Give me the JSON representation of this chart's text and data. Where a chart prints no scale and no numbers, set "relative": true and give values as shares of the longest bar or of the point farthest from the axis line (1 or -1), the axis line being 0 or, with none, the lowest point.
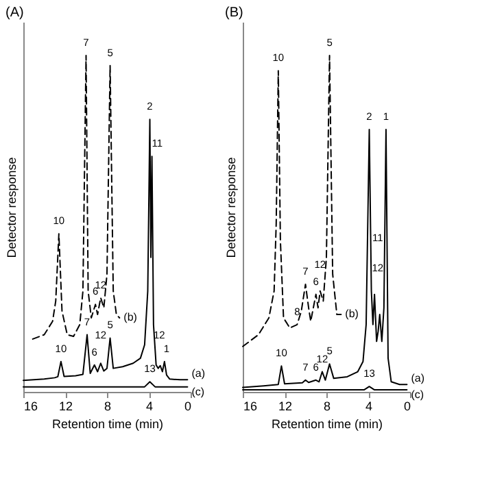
{
  "chart_data": [
    {
      "type": "line",
      "title": "(A)",
      "xlabel": "Retention time (min)",
      "ylabel": "Detector response",
      "xlim": [
        16,
        0
      ],
      "xticks": [
        16,
        12,
        8,
        4,
        0
      ],
      "relative": true,
      "tick_labels": "x",
      "grid": false,
      "marker": "none",
      "series": [
        {
          "name": "(a)",
          "color": "#000000",
          "line_style": "solid",
          "x": [
            16,
            14,
            13,
            12.7,
            12.4,
            12.1,
            11,
            10.3,
            9.9,
            9.6,
            9.2,
            8.9,
            8.6,
            8.3,
            8.0,
            7.7,
            7.4,
            6.5,
            5.5,
            4.8,
            4.4,
            4.1,
            3.9,
            3.8,
            3.7,
            3.55,
            3.3,
            3.1,
            2.9,
            2.7,
            2.5,
            2.3,
            2.0,
            1,
            0.3
          ],
          "values": [
            0.034,
            0.038,
            0.042,
            0.045,
            0.09,
            0.046,
            0.048,
            0.052,
            0.17,
            0.055,
            0.08,
            0.06,
            0.085,
            0.062,
            0.07,
            0.16,
            0.07,
            0.075,
            0.085,
            0.1,
            0.14,
            0.3,
            0.81,
            0.4,
            0.7,
            0.2,
            0.08,
            0.07,
            0.078,
            0.06,
            0.09,
            0.05,
            0.038,
            0.036,
            0.036
          ]
        },
        {
          "name": "(b)",
          "color": "#000000",
          "line_style": "dashed",
          "x": [
            15.1,
            14,
            13.2,
            12.9,
            12.6,
            12.3,
            11.8,
            11.2,
            10.6,
            10.3,
            10.0,
            9.8,
            9.5,
            9.1,
            8.9,
            8.6,
            8.3,
            8.0,
            7.7,
            7.4,
            7.1,
            6.8
          ],
          "values": [
            0.157,
            0.17,
            0.21,
            0.27,
            0.47,
            0.24,
            0.17,
            0.165,
            0.2,
            0.3,
            1.0,
            0.3,
            0.22,
            0.26,
            0.23,
            0.28,
            0.25,
            0.35,
            0.97,
            0.3,
            0.23,
            0.22
          ]
        },
        {
          "name": "(c)",
          "color": "#000000",
          "line_style": "solid",
          "x": [
            16,
            4.4,
            3.9,
            3.4,
            0.3
          ],
          "values": [
            0.015,
            0.015,
            0.03,
            0.015,
            0.015
          ]
        }
      ],
      "annotations": [
        {
          "text": "10",
          "x": 12.6,
          "y": 0.47
        },
        {
          "text": "7",
          "x": 10.0,
          "y": 1.0
        },
        {
          "text": "5",
          "x": 7.7,
          "y": 0.97
        },
        {
          "text": "6",
          "x": 9.1,
          "y": 0.26
        },
        {
          "text": "12",
          "x": 8.6,
          "y": 0.28
        },
        {
          "text": "2",
          "x": 3.9,
          "y": 0.81
        },
        {
          "text": "11",
          "x": 3.2,
          "y": 0.7
        },
        {
          "text": "10",
          "x": 12.4,
          "y": 0.09
        },
        {
          "text": "7",
          "x": 9.9,
          "y": 0.17
        },
        {
          "text": "6",
          "x": 9.2,
          "y": 0.08
        },
        {
          "text": "12",
          "x": 8.6,
          "y": 0.13
        },
        {
          "text": "5",
          "x": 7.7,
          "y": 0.16
        },
        {
          "text": "12",
          "x": 3.0,
          "y": 0.13
        },
        {
          "text": "1",
          "x": 2.3,
          "y": 0.09
        },
        {
          "text": "13",
          "x": 3.9,
          "y": 0.03
        }
      ]
    },
    {
      "type": "line",
      "title": "(B)",
      "xlabel": "Retention time (min)",
      "ylabel": "Detector response",
      "xlim": [
        16,
        0
      ],
      "xticks": [
        16,
        12,
        8,
        4,
        0
      ],
      "relative": true,
      "tick_labels": "x",
      "grid": false,
      "marker": "none",
      "series": [
        {
          "name": "(a)",
          "color": "#000000",
          "line_style": "solid",
          "x": [
            16,
            14,
            12.6,
            12.3,
            12.0,
            10.3,
            10.0,
            9.7,
            9.0,
            8.7,
            8.4,
            8.1,
            7.7,
            7.3,
            6,
            5,
            4.5,
            4.2,
            3.9,
            3.7,
            3.55,
            3.4,
            3.2,
            3.05,
            2.9,
            2.7,
            2.5,
            2.3,
            2.1,
            1.8,
            1,
            0.3
          ],
          "values": [
            0.013,
            0.018,
            0.022,
            0.077,
            0.024,
            0.027,
            0.035,
            0.028,
            0.035,
            0.03,
            0.06,
            0.035,
            0.083,
            0.04,
            0.045,
            0.06,
            0.09,
            0.2,
            0.78,
            0.3,
            0.2,
            0.29,
            0.15,
            0.18,
            0.23,
            0.15,
            0.25,
            0.78,
            0.1,
            0.03,
            0.022,
            0.022
          ]
        },
        {
          "name": "(b)",
          "color": "#000000",
          "line_style": "dashed",
          "x": [
            16,
            14.5,
            13.5,
            13,
            12.8,
            12.6,
            12.4,
            12.1,
            11.5,
            10.8,
            10.4,
            10.0,
            9.7,
            9.5,
            9.0,
            8.8,
            8.6,
            8.3,
            8.0,
            7.7,
            7.4,
            7.0,
            6.6
          ],
          "values": [
            0.135,
            0.17,
            0.22,
            0.3,
            0.5,
            0.955,
            0.45,
            0.22,
            0.19,
            0.2,
            0.24,
            0.32,
            0.25,
            0.21,
            0.29,
            0.25,
            0.3,
            0.27,
            0.4,
            1.0,
            0.35,
            0.23,
            0.23
          ]
        },
        {
          "name": "(c)",
          "color": "#000000",
          "line_style": "solid",
          "x": [
            16,
            4.4,
            3.9,
            3.4,
            0.3
          ],
          "values": [
            0.006,
            0.006,
            0.016,
            0.006,
            0.006
          ]
        }
      ],
      "annotations": [
        {
          "text": "10",
          "x": 12.6,
          "y": 0.955
        },
        {
          "text": "5",
          "x": 7.7,
          "y": 1.0
        },
        {
          "text": "2",
          "x": 3.9,
          "y": 0.78
        },
        {
          "text": "1",
          "x": 2.3,
          "y": 0.78
        },
        {
          "text": "8",
          "x": 10.8,
          "y": 0.2
        },
        {
          "text": "7",
          "x": 10.0,
          "y": 0.32
        },
        {
          "text": "6",
          "x": 9.0,
          "y": 0.29
        },
        {
          "text": "12",
          "x": 8.6,
          "y": 0.34
        },
        {
          "text": "11",
          "x": 3.1,
          "y": 0.42
        },
        {
          "text": "12",
          "x": 3.1,
          "y": 0.33
        },
        {
          "text": "10",
          "x": 12.3,
          "y": 0.077
        },
        {
          "text": "7",
          "x": 10.0,
          "y": 0.035
        },
        {
          "text": "6",
          "x": 9.0,
          "y": 0.035
        },
        {
          "text": "12",
          "x": 8.4,
          "y": 0.06
        },
        {
          "text": "5",
          "x": 7.7,
          "y": 0.083
        },
        {
          "text": "13",
          "x": 3.9,
          "y": 0.016
        }
      ]
    }
  ]
}
